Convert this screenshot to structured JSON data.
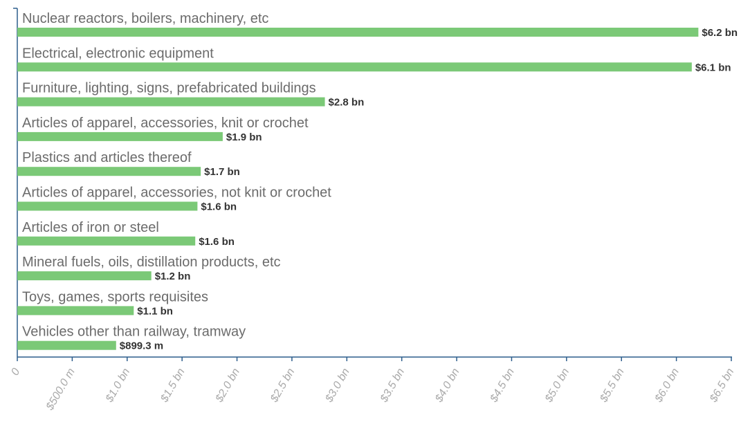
{
  "chart_data": {
    "type": "bar",
    "orientation": "horizontal",
    "categories": [
      "Nuclear reactors, boilers, machinery, etc",
      "Electrical, electronic equipment",
      "Furniture, lighting, signs, prefabricated buildings",
      "Articles of apparel, accessories, knit or crochet",
      "Plastics and articles thereof",
      "Articles of apparel, accessories, not knit or crochet",
      "Articles of iron or steel",
      "Mineral fuels, oils, distillation products, etc",
      "Toys, games, sports requisites",
      "Vehicles other than railway, tramway"
    ],
    "values": [
      6200000000,
      6140000000,
      2800000000,
      1870000000,
      1670000000,
      1640000000,
      1620000000,
      1220000000,
      1060000000,
      899300000
    ],
    "value_labels": [
      "$6.2 bn",
      "$6.1 bn",
      "$2.8 bn",
      "$1.9 bn",
      "$1.7 bn",
      "$1.6 bn",
      "$1.6 bn",
      "$1.2 bn",
      "$1.1 bn",
      "$899.3 m"
    ],
    "color": "#7bc977",
    "xlim": [
      0,
      6500000000
    ],
    "xticks": [
      0,
      {
        "value": 500000000,
        "label": "$500.0 m"
      },
      {
        "value": 1000000000,
        "label": "$1.0 bn"
      },
      {
        "value": 1500000000,
        "label": "$1.5 bn"
      },
      {
        "value": 2000000000,
        "label": "$2.0 bn"
      },
      {
        "value": 2500000000,
        "label": "$2.5 bn"
      },
      {
        "value": 3000000000,
        "label": "$3.0 bn"
      },
      {
        "value": 3500000000,
        "label": "$3.5 bn"
      },
      {
        "value": 4000000000,
        "label": "$4.0 bn"
      },
      {
        "value": 4500000000,
        "label": "$4.5 bn"
      },
      {
        "value": 5000000000,
        "label": "$5.0 bn"
      },
      {
        "value": 5500000000,
        "label": "$5.5 bn"
      },
      {
        "value": 6000000000,
        "label": "$6.0 bn"
      },
      {
        "value": 6500000000,
        "label": "$6.5 bn"
      }
    ]
  }
}
